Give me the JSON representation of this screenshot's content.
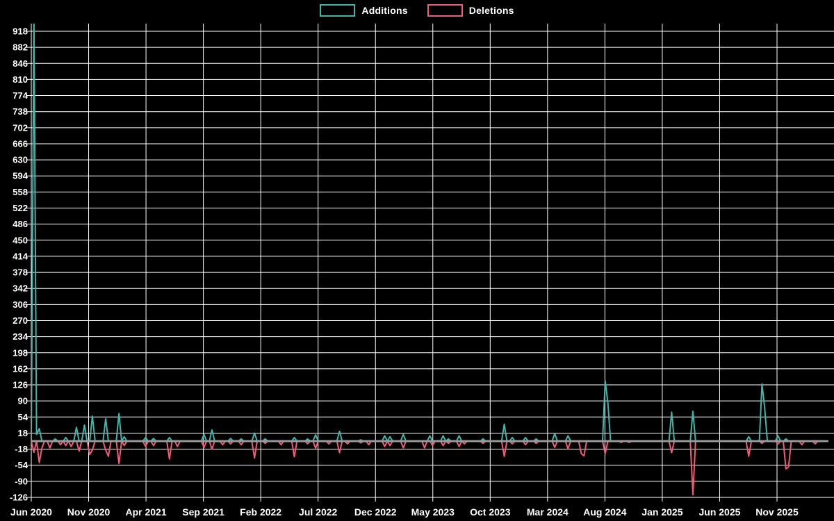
{
  "page": {
    "background": "#000000",
    "text_color": "#ffffff",
    "grid_color": "#ffffff"
  },
  "legend": {
    "items": [
      {
        "label": "Additions",
        "color": "#3fb5ab"
      },
      {
        "label": "Deletions",
        "color": "#f05c7a"
      }
    ]
  },
  "chart_data": {
    "type": "line",
    "title": "",
    "xlabel": "",
    "ylabel": "",
    "grid": true,
    "legend_position": "top-center",
    "baseline_color": "#97999b",
    "x_axis": {
      "tick_labels": [
        "Jun 2020",
        "Nov 2020",
        "Apr 2021",
        "Sep 2021",
        "Feb 2022",
        "Jul 2022",
        "Dec 2022",
        "May 2023",
        "Oct 2023",
        "Mar 2024",
        "Aug 2024",
        "Jan 2025",
        "Jun 2025",
        "Nov 2025"
      ],
      "tick_interval": "5 months",
      "data_resolution": "weekly",
      "weeks_total": 300
    },
    "y_axis": {
      "ticks": [
        918,
        882,
        846,
        810,
        774,
        738,
        702,
        666,
        630,
        594,
        558,
        522,
        486,
        450,
        414,
        378,
        342,
        306,
        270,
        234,
        198,
        162,
        126,
        90,
        54,
        18,
        -18,
        -54,
        -90,
        -126
      ],
      "min": -126,
      "max": 918,
      "step": 36
    },
    "series": [
      {
        "name": "Additions",
        "color": "#3fb5ab",
        "default_value": 0,
        "sparse_points": {
          "1": 960,
          "2": 15,
          "3": 28,
          "9": 5,
          "13": 8,
          "17": 31,
          "20": 36,
          "23": 56,
          "28": 50,
          "33": 62,
          "35": 10,
          "43": 8,
          "46": 6,
          "52": 8,
          "65": 15,
          "68": 25,
          "75": 6,
          "79": 5,
          "84": 18,
          "88": 5,
          "99": 8,
          "104": 5,
          "107": 14,
          "116": 22,
          "124": 3,
          "133": 12,
          "135": 10,
          "140": 15,
          "150": 12,
          "155": 12,
          "157": 5,
          "161": 12,
          "170": 5,
          "178": 38,
          "181": 8,
          "186": 8,
          "190": 5,
          "197": 17,
          "202": 12,
          "216": 135,
          "217": 85,
          "241": 65,
          "249": 67,
          "270": 10,
          "275": 128,
          "276": 75,
          "281": 12,
          "284": 5
        }
      },
      {
        "name": "Deletions",
        "color": "#f05c7a",
        "default_value": 0,
        "sparse_points": {
          "1": -25,
          "3": -48,
          "4": -15,
          "7": -15,
          "11": -8,
          "13": -10,
          "15": -12,
          "18": -22,
          "22": -30,
          "23": -20,
          "28": -20,
          "29": -34,
          "33": -50,
          "35": -10,
          "43": -12,
          "46": -10,
          "52": -40,
          "55": -12,
          "65": -14,
          "68": -18,
          "72": -8,
          "75": -6,
          "79": -8,
          "84": -38,
          "88": -5,
          "94": -8,
          "99": -35,
          "104": -6,
          "107": -16,
          "112": -6,
          "116": -26,
          "119": -6,
          "124": -4,
          "127": -8,
          "133": -12,
          "135": -10,
          "140": -15,
          "148": -15,
          "151": -10,
          "155": -10,
          "157": -5,
          "161": -12,
          "163": -6,
          "170": -5,
          "178": -34,
          "181": -6,
          "186": -8,
          "190": -5,
          "197": -14,
          "202": -17,
          "207": -28,
          "208": -33,
          "216": -28,
          "222": -3,
          "225": -3,
          "241": -26,
          "249": -120,
          "270": -34,
          "275": -5,
          "281": -6,
          "284": -62,
          "285": -58,
          "290": -8,
          "295": -6
        }
      }
    ]
  }
}
